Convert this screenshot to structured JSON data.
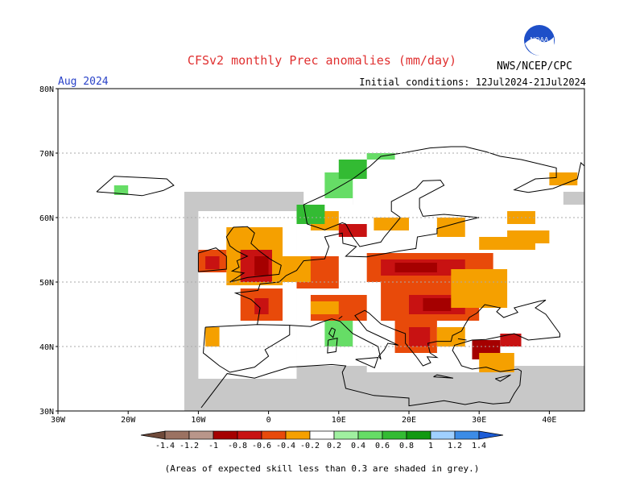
{
  "header": {
    "title": "CFSv2 monthly Prec anomalies (mm/day)",
    "month": "Aug 2024",
    "initial_conditions": "Initial conditions: 12Jul2024-21Jul2024",
    "agency": "NWS/NCEP/CPC",
    "logo_text": "NOAA"
  },
  "map": {
    "lon_range": [
      -30,
      45
    ],
    "lat_range": [
      30,
      80
    ],
    "lat_ticks": [
      "30N",
      "40N",
      "50N",
      "60N",
      "70N",
      "80N"
    ],
    "lon_ticks": [
      "30W",
      "20W",
      "10W",
      "0",
      "10E",
      "20E",
      "30E",
      "40E"
    ],
    "colors": {
      "background": "#c8c8c8",
      "no_signal": "#ffffff"
    }
  },
  "colorbar": {
    "labels": [
      "-1.4",
      "-1.2",
      "-1",
      "-0.8",
      "-0.6",
      "-0.4",
      "-0.2",
      "0.2",
      "0.4",
      "0.6",
      "0.8",
      "1",
      "1.2",
      "1.4"
    ],
    "colors": [
      "#6f4a3a",
      "#9b7262",
      "#b9968a",
      "#a50000",
      "#c81212",
      "#e84a0a",
      "#f5a000",
      "#ffffff",
      "#a0f0a0",
      "#66dd66",
      "#33bb33",
      "#119911",
      "#a0d0ff",
      "#3c8ce6",
      "#1c5cd6"
    ]
  },
  "footnote": "(Areas of expected skill less than 0.3 are shaded in grey.)"
}
